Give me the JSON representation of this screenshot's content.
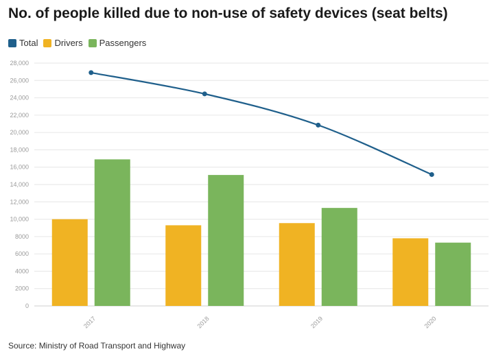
{
  "title": "No. of people killed due to non-use of safety devices (seat belts)",
  "legend": [
    {
      "label": "Total",
      "color": "#1f5f8b"
    },
    {
      "label": "Drivers",
      "color": "#f0b323"
    },
    {
      "label": "Passengers",
      "color": "#7ab55c"
    }
  ],
  "source": "Source: Ministry of Road Transport and Highway",
  "chart_data": {
    "type": "bar",
    "categories": [
      "2017",
      "2018",
      "2019",
      "2020"
    ],
    "series": [
      {
        "name": "Drivers",
        "type": "bar",
        "color": "#f0b323",
        "values": [
          10000,
          9300,
          9550,
          7800
        ]
      },
      {
        "name": "Passengers",
        "type": "bar",
        "color": "#7ab55c",
        "values": [
          16900,
          15100,
          11300,
          7300
        ]
      },
      {
        "name": "Total",
        "type": "line",
        "color": "#1f5f8b",
        "values": [
          26900,
          24450,
          20850,
          15150
        ]
      }
    ],
    "y_ticks": [
      "0",
      "2000",
      "4000",
      "6000",
      "8000",
      "10,000",
      "12,000",
      "14,000",
      "16,000",
      "18,000",
      "20,000",
      "22,000",
      "24,000",
      "26,000",
      "28,000"
    ],
    "ylim": [
      0,
      28000
    ],
    "grid": true,
    "legend_position": "top-left",
    "xlabel": "",
    "ylabel": ""
  }
}
